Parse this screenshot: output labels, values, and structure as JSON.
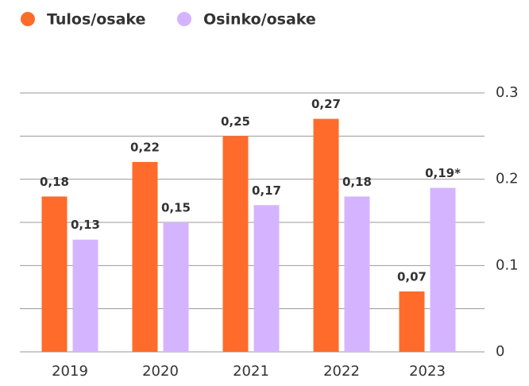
{
  "chart_data": {
    "type": "bar",
    "categories": [
      "2019",
      "2020",
      "2021",
      "2022",
      "2023"
    ],
    "series": [
      {
        "name": "Tulos/osake",
        "color": "#ff6b2b",
        "values": [
          0.18,
          0.22,
          0.25,
          0.27,
          0.07
        ],
        "value_labels": [
          "0,18",
          "0,22",
          "0,25",
          "0,27",
          "0,07"
        ]
      },
      {
        "name": "Osinko/osake",
        "color": "#d5b4ff",
        "values": [
          0.13,
          0.15,
          0.17,
          0.18,
          0.19
        ],
        "value_labels": [
          "0,13",
          "0,15",
          "0,17",
          "0,18",
          "0,19*"
        ]
      }
    ],
    "ylim": [
      0,
      0.3
    ],
    "yticks": [
      0,
      0.1,
      0.2,
      0.3
    ],
    "minor_yticks": [
      0.05,
      0.15,
      0.25
    ],
    "grid": true,
    "y_axis_side": "right",
    "legend": "top-left"
  }
}
